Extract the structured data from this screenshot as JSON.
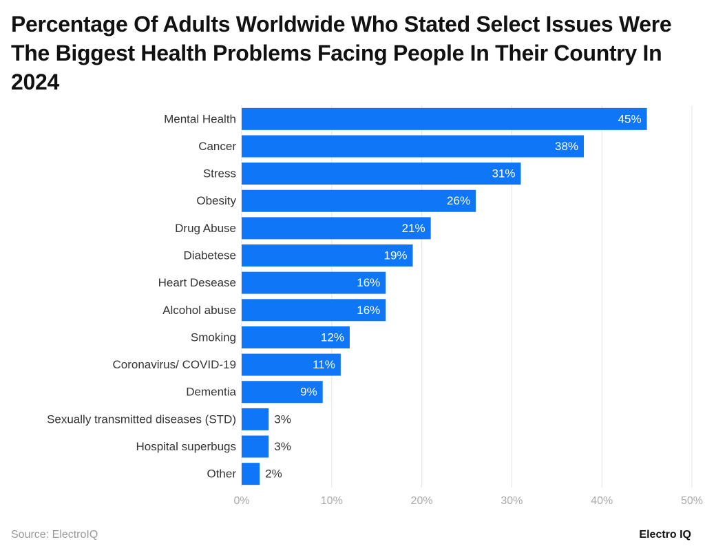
{
  "chart_data": {
    "type": "barh",
    "title": "Percentage Of Adults Worldwide Who Stated Select Issues Were The Biggest Health Problems Facing People In Their Country In 2024",
    "categories": [
      "Mental Health",
      "Cancer",
      "Stress",
      "Obesity",
      "Drug Abuse",
      "Diabetese",
      "Heart Desease",
      "Alcohol abuse",
      "Smoking",
      "Coronavirus/ COVID-19",
      "Dementia",
      "Sexually transmitted diseases (STD)",
      "Hospital superbugs",
      "Other"
    ],
    "values": [
      45,
      38,
      31,
      26,
      21,
      19,
      16,
      16,
      12,
      11,
      9,
      3,
      3,
      2
    ],
    "value_labels": [
      "45%",
      "38%",
      "31%",
      "26%",
      "21%",
      "19%",
      "16%",
      "16%",
      "12%",
      "11%",
      "9%",
      "3%",
      "3%",
      "2%"
    ],
    "color": "#0f77f7",
    "xlim": [
      0,
      50
    ],
    "xticks": [
      {
        "value": 0,
        "label": "0%"
      },
      {
        "value": 10,
        "label": "10%"
      },
      {
        "value": 20,
        "label": "20%"
      },
      {
        "value": 30,
        "label": "30%"
      },
      {
        "value": 40,
        "label": "40%"
      },
      {
        "value": 50,
        "label": "50%"
      }
    ],
    "grid": true,
    "source": "Source: ElectroIQ",
    "brand": "Electro IQ"
  }
}
